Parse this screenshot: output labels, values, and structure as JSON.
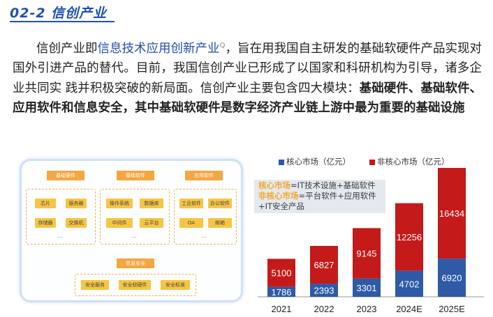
{
  "heading": {
    "title": "02-2  信创产业"
  },
  "paragraph": {
    "p1": "信创产业即",
    "link": "信息技术应用创新产业",
    "sup": "Q",
    "p2": "，旨在用我国自主研发的基础软硬件产品实现对 国外引进产品的替代。目前，我国信创产业已形成了以国家和科研机构为引导，诸多企业共同实 践并积极突破的新局面。信创产业主要包含四大模块：",
    "bold": "基础硬件、基础软件、应用软件和信息安全，其中基础软硬件是数字经济产业链上游中最为重要的基础设施"
  },
  "diagram": {
    "heads": [
      "基础硬件",
      "基础软件",
      "应用软件"
    ],
    "hardware": [
      "芯片",
      "服务器",
      "存储器",
      "交换机"
    ],
    "software": [
      "操作系统",
      "数据库",
      "中间件",
      "云平台"
    ],
    "apps": [
      "工业软件",
      "办公软件",
      "OA",
      "邮箱"
    ],
    "dots": "...",
    "security_head": "信息安全",
    "security": [
      "安全服务",
      "安全软硬件",
      "安全标准"
    ]
  },
  "chart_data": {
    "type": "bar",
    "stacked": true,
    "categories": [
      "2021",
      "2022",
      "2023",
      "2024E",
      "2025E"
    ],
    "series": [
      {
        "name": "核心市场（亿元）",
        "color": "#2e5aa6",
        "values": [
          1786,
          2393,
          3301,
          4702,
          6920
        ]
      },
      {
        "name": "非核心市场（亿元）",
        "color": "#c41a1a",
        "values": [
          5100,
          6827,
          9145,
          12256,
          16434
        ]
      }
    ],
    "legend_position": "top",
    "annotation": {
      "core_label": "核心市场",
      "core_text": "=IT技术设施+基础软件",
      "noncore_label": "非核心市场",
      "noncore_text": "=平台软件+应用软件",
      "line3": "+IT安全产品"
    }
  }
}
